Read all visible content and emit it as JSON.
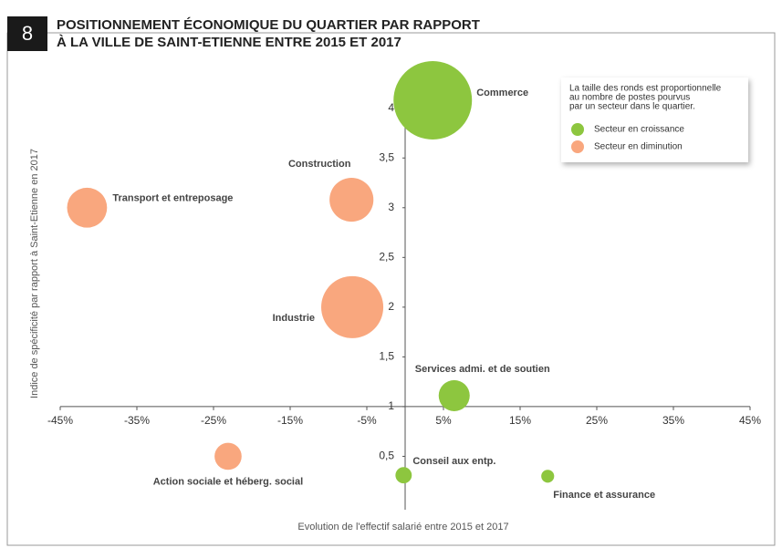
{
  "chart_data": {
    "type": "bubble",
    "badge": "8",
    "title": [
      "POSITIONNEMENT ÉCONOMIQUE DU QUARTIER PAR RAPPORT",
      "À LA VILLE DE SAINT-ETIENNE ENTRE 2015 ET 2017"
    ],
    "x_label": "Evolution de l'effectif salarié entre 2015 et 2017",
    "y_label": "Indice de spécificité par rapport à Saint-Etienne en 2017",
    "note": [
      "La taille des ronds est proportionnelle",
      "au nombre de postes pourvus",
      "par un secteur dans le quartier."
    ],
    "xlim": [
      -45,
      45
    ],
    "ylim": [
      0,
      4.3
    ],
    "xticks": [
      {
        "value": -45,
        "label": "-45%"
      },
      {
        "value": -35,
        "label": "-35%"
      },
      {
        "value": -25,
        "label": "-25%"
      },
      {
        "value": -15,
        "label": "-15%"
      },
      {
        "value": -5,
        "label": "-5%"
      },
      {
        "value": 5,
        "label": "5%"
      },
      {
        "value": 15,
        "label": "15%"
      },
      {
        "value": 25,
        "label": "25%"
      },
      {
        "value": 35,
        "label": "35%"
      },
      {
        "value": 45,
        "label": "45%"
      }
    ],
    "yticks": [
      {
        "value": 0.5,
        "label": "0,5"
      },
      1,
      {
        "value": 1.5,
        "label": "1,5"
      },
      2,
      {
        "value": 2.5,
        "label": "2,5"
      },
      3,
      {
        "value": 3.5,
        "label": "3,5"
      },
      4
    ],
    "series": [
      {
        "name": "Secteur en croissance",
        "color": "#8dc63f",
        "labels": [
          "Commerce",
          "Services admi. et de soutien",
          "Conseil aux entp.",
          "Finance et assurance"
        ],
        "x": [
          3.6,
          6.4,
          -0.2,
          18.6
        ],
        "values": [
          4.08,
          1.11,
          0.31,
          0.3
        ],
        "sizes": [
          185,
          29,
          8,
          5
        ]
      },
      {
        "name": "Secteur en diminution",
        "color": "#f9a77e",
        "labels": [
          "Construction",
          "Transport et entreposage",
          "Industrie",
          "Action sociale et héberg. social"
        ],
        "x": [
          -7.0,
          -41.5,
          -6.9,
          -23.1
        ],
        "values": [
          3.08,
          3.0,
          2.0,
          0.5
        ],
        "sizes": [
          58,
          48,
          116,
          22
        ]
      }
    ]
  }
}
